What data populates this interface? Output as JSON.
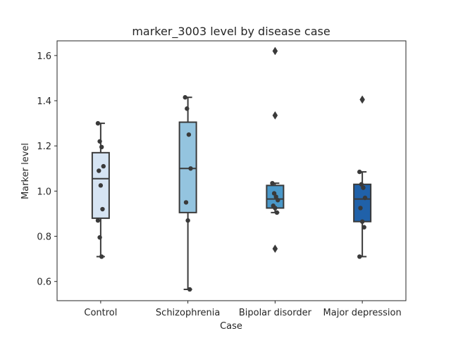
{
  "chart_data": {
    "type": "box",
    "title": "marker_3003 level by disease case",
    "xlabel": "Case",
    "ylabel": "Marker level",
    "ylim": [
      0.515,
      1.665
    ],
    "yticks": [
      "0.6",
      "0.8",
      "1.0",
      "1.2",
      "1.4",
      "1.6"
    ],
    "categories": [
      "Control",
      "Schizophrenia",
      "Bipolar disorder",
      "Major depression"
    ],
    "colors": [
      "#d6e4f3",
      "#94c4df",
      "#4a98c9",
      "#2061a9"
    ],
    "grid": false,
    "legend": "none",
    "boxes": [
      {
        "category": "Control",
        "whisker_low": 0.71,
        "q1": 0.88,
        "median": 1.055,
        "q3": 1.17,
        "whisker_high": 1.3,
        "outliers": []
      },
      {
        "category": "Schizophrenia",
        "whisker_low": 0.565,
        "q1": 0.905,
        "median": 1.1,
        "q3": 1.305,
        "whisker_high": 1.415,
        "outliers": []
      },
      {
        "category": "Bipolar disorder",
        "whisker_low": 0.905,
        "q1": 0.925,
        "median": 0.965,
        "q3": 1.025,
        "whisker_high": 1.035,
        "outliers": [
          1.62,
          1.335,
          0.745
        ]
      },
      {
        "category": "Major depression",
        "whisker_low": 0.71,
        "q1": 0.865,
        "median": 0.965,
        "q3": 1.03,
        "whisker_high": 1.085,
        "outliers": [
          1.405
        ]
      }
    ],
    "points": [
      {
        "category": "Control",
        "values": [
          1.3,
          1.22,
          1.195,
          1.11,
          1.09,
          1.025,
          0.92,
          0.87,
          0.795,
          0.71
        ]
      },
      {
        "category": "Schizophrenia",
        "values": [
          1.415,
          1.365,
          1.25,
          1.1,
          0.95,
          0.87,
          0.565
        ]
      },
      {
        "category": "Bipolar disorder",
        "values": [
          1.035,
          0.99,
          0.975,
          0.96,
          0.935,
          0.925,
          0.905
        ]
      },
      {
        "category": "Major depression",
        "values": [
          1.085,
          1.03,
          1.015,
          0.97,
          0.925,
          0.865,
          0.84,
          0.71
        ]
      }
    ]
  }
}
